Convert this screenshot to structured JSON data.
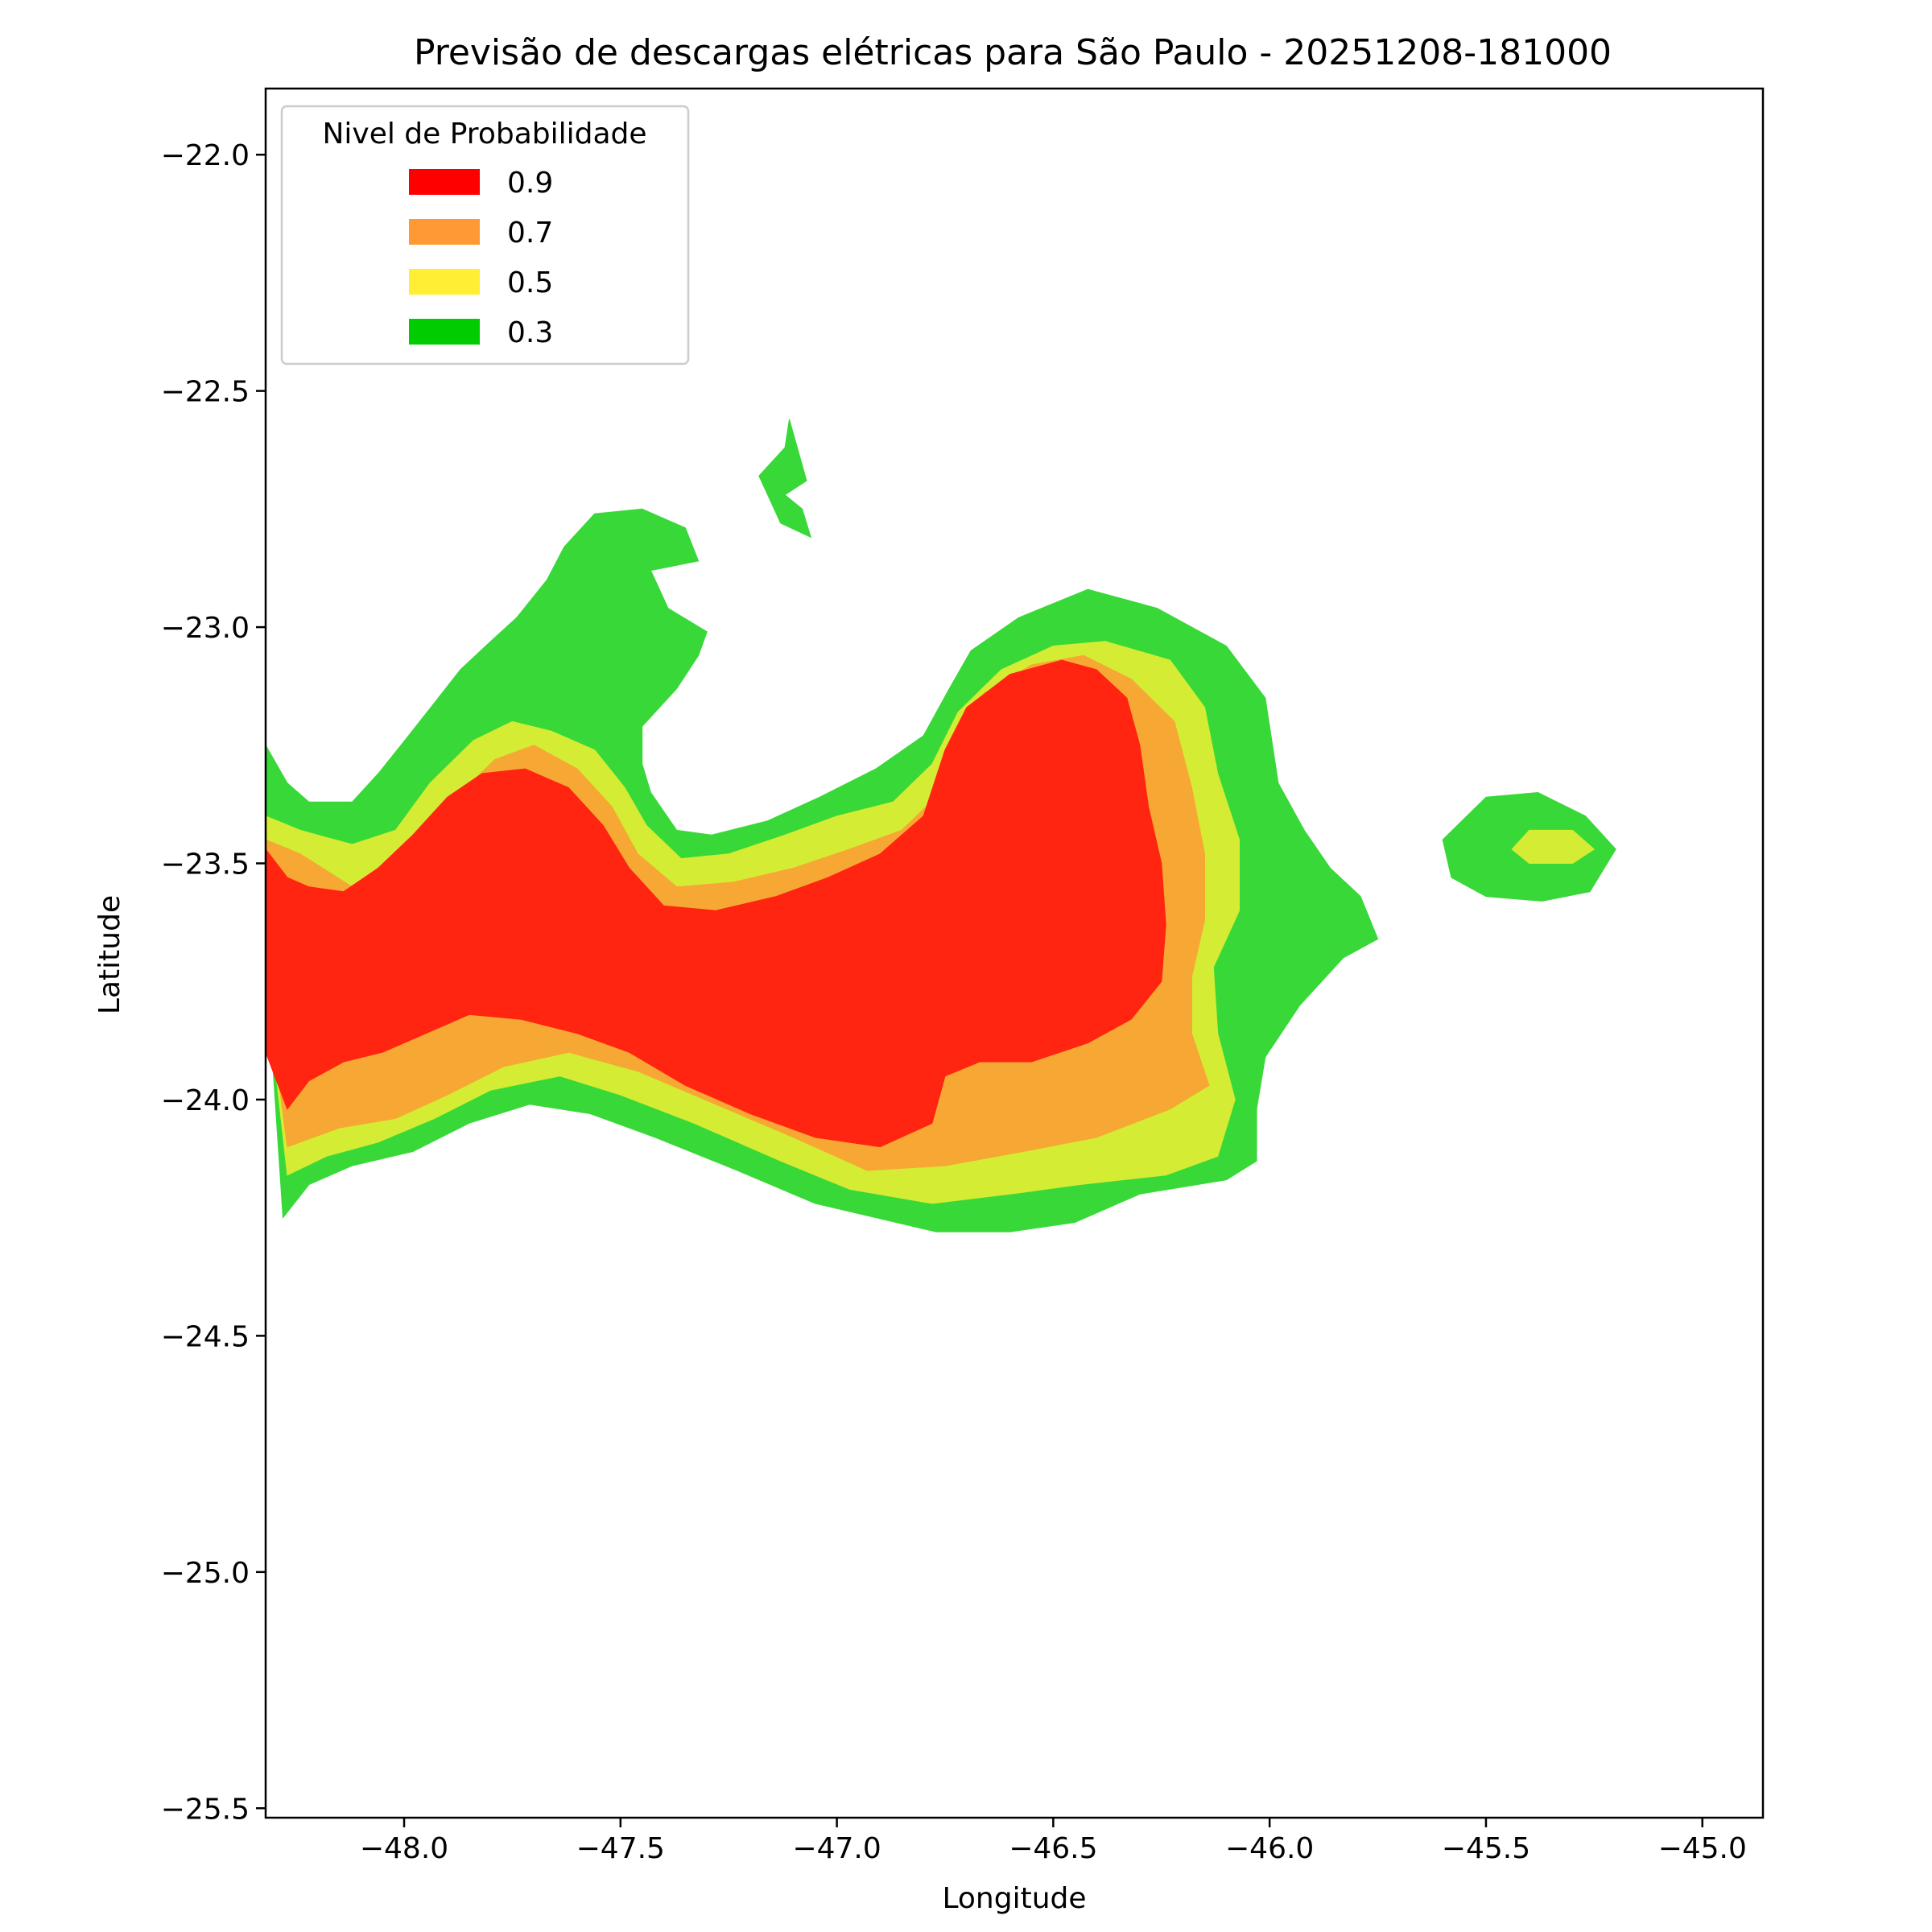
{
  "chart_data": {
    "type": "area",
    "title": "Previsão de descargas elétricas para São Paulo - 20251208-181000",
    "xlabel": "Longitude",
    "ylabel": "Latitude",
    "xlim": [
      -48.32,
      -44.86
    ],
    "ylim": [
      -25.52,
      -21.86
    ],
    "xticks": [
      {
        "value": -48.0,
        "label": "−48.0"
      },
      {
        "value": -47.5,
        "label": "−47.5"
      },
      {
        "value": -47.0,
        "label": "−47.0"
      },
      {
        "value": -46.5,
        "label": "−46.5"
      },
      {
        "value": -46.0,
        "label": "−46.0"
      },
      {
        "value": -45.5,
        "label": "−45.5"
      },
      {
        "value": -45.0,
        "label": "−45.0"
      }
    ],
    "yticks": [
      {
        "value": -22.0,
        "label": "−22.0"
      },
      {
        "value": -22.5,
        "label": "−22.5"
      },
      {
        "value": -23.0,
        "label": "−23.0"
      },
      {
        "value": -23.5,
        "label": "−23.5"
      },
      {
        "value": -24.0,
        "label": "−24.0"
      },
      {
        "value": -24.5,
        "label": "−24.5"
      },
      {
        "value": -25.0,
        "label": "−25.0"
      },
      {
        "value": -25.5,
        "label": "−25.5"
      }
    ],
    "grid": false,
    "legend": {
      "title": "Nivel de Probabilidade",
      "placement": "top-left",
      "entries": [
        {
          "label": "0.9",
          "color": "#ff0000"
        },
        {
          "label": "0.7",
          "color": "#ff9933"
        },
        {
          "label": "0.5",
          "color": "#ffee33"
        },
        {
          "label": "0.3",
          "color": "#00cc00"
        }
      ]
    },
    "regions": [
      {
        "level": "0.3",
        "color": "#38d838",
        "outline": [
          [
            -48.32,
            -23.25
          ],
          [
            -48.27,
            -23.33
          ],
          [
            -48.22,
            -23.37
          ],
          [
            -48.12,
            -23.37
          ],
          [
            -48.06,
            -23.31
          ],
          [
            -47.99,
            -23.23
          ],
          [
            -47.93,
            -23.16
          ],
          [
            -47.87,
            -23.09
          ],
          [
            -47.8,
            -23.03
          ],
          [
            -47.74,
            -22.98
          ],
          [
            -47.67,
            -22.9
          ],
          [
            -47.63,
            -22.83
          ],
          [
            -47.56,
            -22.76
          ],
          [
            -47.45,
            -22.75
          ],
          [
            -47.35,
            -22.79
          ],
          [
            -47.32,
            -22.86
          ],
          [
            -47.43,
            -22.88
          ],
          [
            -47.39,
            -22.96
          ],
          [
            -47.3,
            -23.01
          ],
          [
            -47.32,
            -23.06
          ],
          [
            -47.37,
            -23.13
          ],
          [
            -47.45,
            -23.21
          ],
          [
            -47.45,
            -23.29
          ],
          [
            -47.43,
            -23.35
          ],
          [
            -47.37,
            -23.43
          ],
          [
            -47.29,
            -23.44
          ],
          [
            -47.16,
            -23.41
          ],
          [
            -47.04,
            -23.36
          ],
          [
            -46.91,
            -23.3
          ],
          [
            -46.8,
            -23.23
          ],
          [
            -46.74,
            -23.13
          ],
          [
            -46.69,
            -23.05
          ],
          [
            -46.58,
            -22.98
          ],
          [
            -46.42,
            -22.92
          ],
          [
            -46.26,
            -22.96
          ],
          [
            -46.1,
            -23.04
          ],
          [
            -46.01,
            -23.15
          ],
          [
            -45.98,
            -23.33
          ],
          [
            -45.92,
            -23.43
          ],
          [
            -45.86,
            -23.51
          ],
          [
            -45.79,
            -23.57
          ],
          [
            -45.75,
            -23.66
          ],
          [
            -45.83,
            -23.7
          ],
          [
            -45.93,
            -23.8
          ],
          [
            -46.01,
            -23.91
          ],
          [
            -46.03,
            -24.02
          ],
          [
            -46.03,
            -24.13
          ],
          [
            -46.1,
            -24.17
          ],
          [
            -46.3,
            -24.2
          ],
          [
            -46.45,
            -24.26
          ],
          [
            -46.6,
            -24.28
          ],
          [
            -46.77,
            -24.28
          ],
          [
            -46.91,
            -24.25
          ],
          [
            -47.05,
            -24.22
          ],
          [
            -47.23,
            -24.15
          ],
          [
            -47.42,
            -24.08
          ],
          [
            -47.57,
            -24.03
          ],
          [
            -47.71,
            -24.01
          ],
          [
            -47.85,
            -24.05
          ],
          [
            -47.98,
            -24.11
          ],
          [
            -48.12,
            -24.14
          ],
          [
            -48.22,
            -24.18
          ],
          [
            -48.28,
            -24.25
          ],
          [
            -48.32,
            -23.7
          ]
        ]
      },
      {
        "level": "0.5",
        "color": "#d4ec33",
        "outline": [
          [
            -48.32,
            -23.4
          ],
          [
            -48.24,
            -23.43
          ],
          [
            -48.12,
            -23.46
          ],
          [
            -48.02,
            -23.43
          ],
          [
            -47.94,
            -23.33
          ],
          [
            -47.84,
            -23.24
          ],
          [
            -47.75,
            -23.2
          ],
          [
            -47.66,
            -23.22
          ],
          [
            -47.56,
            -23.26
          ],
          [
            -47.49,
            -23.34
          ],
          [
            -47.44,
            -23.42
          ],
          [
            -47.36,
            -23.49
          ],
          [
            -47.25,
            -23.48
          ],
          [
            -47.12,
            -23.44
          ],
          [
            -47.0,
            -23.4
          ],
          [
            -46.87,
            -23.37
          ],
          [
            -46.78,
            -23.29
          ],
          [
            -46.72,
            -23.18
          ],
          [
            -46.62,
            -23.09
          ],
          [
            -46.5,
            -23.04
          ],
          [
            -46.38,
            -23.03
          ],
          [
            -46.23,
            -23.07
          ],
          [
            -46.15,
            -23.17
          ],
          [
            -46.12,
            -23.31
          ],
          [
            -46.07,
            -23.45
          ],
          [
            -46.07,
            -23.6
          ],
          [
            -46.13,
            -23.72
          ],
          [
            -46.12,
            -23.86
          ],
          [
            -46.08,
            -24.0
          ],
          [
            -46.12,
            -24.12
          ],
          [
            -46.24,
            -24.16
          ],
          [
            -46.44,
            -24.18
          ],
          [
            -46.6,
            -24.2
          ],
          [
            -46.78,
            -24.22
          ],
          [
            -46.97,
            -24.19
          ],
          [
            -47.13,
            -24.13
          ],
          [
            -47.33,
            -24.05
          ],
          [
            -47.5,
            -23.99
          ],
          [
            -47.64,
            -23.95
          ],
          [
            -47.8,
            -23.98
          ],
          [
            -47.93,
            -24.04
          ],
          [
            -48.06,
            -24.09
          ],
          [
            -48.18,
            -24.12
          ],
          [
            -48.27,
            -24.16
          ],
          [
            -48.32,
            -23.75
          ]
        ]
      },
      {
        "level": "0.7",
        "color": "#f7a733",
        "outline": [
          [
            -48.32,
            -23.45
          ],
          [
            -48.24,
            -23.48
          ],
          [
            -48.12,
            -23.55
          ],
          [
            -48.03,
            -23.53
          ],
          [
            -47.96,
            -23.44
          ],
          [
            -47.88,
            -23.36
          ],
          [
            -47.79,
            -23.28
          ],
          [
            -47.7,
            -23.25
          ],
          [
            -47.6,
            -23.3
          ],
          [
            -47.52,
            -23.38
          ],
          [
            -47.46,
            -23.48
          ],
          [
            -47.37,
            -23.55
          ],
          [
            -47.24,
            -23.54
          ],
          [
            -47.1,
            -23.51
          ],
          [
            -46.97,
            -23.47
          ],
          [
            -46.85,
            -23.43
          ],
          [
            -46.76,
            -23.35
          ],
          [
            -46.72,
            -23.23
          ],
          [
            -46.66,
            -23.14
          ],
          [
            -46.55,
            -23.08
          ],
          [
            -46.43,
            -23.06
          ],
          [
            -46.32,
            -23.11
          ],
          [
            -46.22,
            -23.2
          ],
          [
            -46.18,
            -23.34
          ],
          [
            -46.15,
            -23.48
          ],
          [
            -46.15,
            -23.62
          ],
          [
            -46.18,
            -23.74
          ],
          [
            -46.18,
            -23.86
          ],
          [
            -46.14,
            -23.97
          ],
          [
            -46.23,
            -24.02
          ],
          [
            -46.4,
            -24.08
          ],
          [
            -46.57,
            -24.11
          ],
          [
            -46.75,
            -24.14
          ],
          [
            -46.93,
            -24.15
          ],
          [
            -47.1,
            -24.08
          ],
          [
            -47.28,
            -24.01
          ],
          [
            -47.46,
            -23.94
          ],
          [
            -47.62,
            -23.9
          ],
          [
            -47.77,
            -23.93
          ],
          [
            -47.9,
            -23.99
          ],
          [
            -48.02,
            -24.04
          ],
          [
            -48.15,
            -24.06
          ],
          [
            -48.27,
            -24.1
          ],
          [
            -48.32,
            -23.75
          ]
        ]
      },
      {
        "level": "0.9",
        "color": "#ff2510",
        "outline": [
          [
            -48.32,
            -23.47
          ],
          [
            -48.27,
            -23.53
          ],
          [
            -48.22,
            -23.55
          ],
          [
            -48.14,
            -23.56
          ],
          [
            -48.06,
            -23.51
          ],
          [
            -47.98,
            -23.44
          ],
          [
            -47.9,
            -23.36
          ],
          [
            -47.82,
            -23.31
          ],
          [
            -47.72,
            -23.3
          ],
          [
            -47.62,
            -23.34
          ],
          [
            -47.54,
            -23.42
          ],
          [
            -47.48,
            -23.51
          ],
          [
            -47.4,
            -23.59
          ],
          [
            -47.28,
            -23.6
          ],
          [
            -47.14,
            -23.57
          ],
          [
            -47.02,
            -23.53
          ],
          [
            -46.9,
            -23.48
          ],
          [
            -46.8,
            -23.4
          ],
          [
            -46.75,
            -23.26
          ],
          [
            -46.7,
            -23.17
          ],
          [
            -46.6,
            -23.1
          ],
          [
            -46.48,
            -23.07
          ],
          [
            -46.4,
            -23.09
          ],
          [
            -46.33,
            -23.15
          ],
          [
            -46.3,
            -23.25
          ],
          [
            -46.28,
            -23.38
          ],
          [
            -46.25,
            -23.5
          ],
          [
            -46.24,
            -23.63
          ],
          [
            -46.25,
            -23.75
          ],
          [
            -46.32,
            -23.83
          ],
          [
            -46.42,
            -23.88
          ],
          [
            -46.55,
            -23.92
          ],
          [
            -46.67,
            -23.92
          ],
          [
            -46.75,
            -23.95
          ],
          [
            -46.78,
            -24.05
          ],
          [
            -46.9,
            -24.1
          ],
          [
            -47.05,
            -24.08
          ],
          [
            -47.2,
            -24.03
          ],
          [
            -47.35,
            -23.97
          ],
          [
            -47.48,
            -23.9
          ],
          [
            -47.6,
            -23.86
          ],
          [
            -47.73,
            -23.83
          ],
          [
            -47.85,
            -23.82
          ],
          [
            -47.95,
            -23.86
          ],
          [
            -48.05,
            -23.9
          ],
          [
            -48.14,
            -23.92
          ],
          [
            -48.22,
            -23.96
          ],
          [
            -48.27,
            -24.02
          ],
          [
            -48.32,
            -23.9
          ]
        ]
      },
      {
        "level": "0.3",
        "color": "#38d838",
        "outline": [
          [
            -47.11,
            -22.56
          ],
          [
            -47.07,
            -22.69
          ],
          [
            -47.12,
            -22.72
          ],
          [
            -47.08,
            -22.75
          ],
          [
            -47.06,
            -22.81
          ],
          [
            -47.13,
            -22.78
          ],
          [
            -47.16,
            -22.72
          ],
          [
            -47.18,
            -22.68
          ],
          [
            -47.12,
            -22.62
          ]
        ]
      },
      {
        "level": "0.3",
        "color": "#38d838",
        "outline": [
          [
            -45.5,
            -23.36
          ],
          [
            -45.38,
            -23.35
          ],
          [
            -45.27,
            -23.4
          ],
          [
            -45.2,
            -23.47
          ],
          [
            -45.26,
            -23.56
          ],
          [
            -45.37,
            -23.58
          ],
          [
            -45.5,
            -23.57
          ],
          [
            -45.58,
            -23.53
          ],
          [
            -45.6,
            -23.45
          ]
        ]
      },
      {
        "level": "0.5",
        "color": "#d4ec33",
        "outline": [
          [
            -45.4,
            -23.43
          ],
          [
            -45.3,
            -23.43
          ],
          [
            -45.25,
            -23.47
          ],
          [
            -45.3,
            -23.5
          ],
          [
            -45.4,
            -23.5
          ],
          [
            -45.44,
            -23.47
          ]
        ]
      }
    ]
  }
}
